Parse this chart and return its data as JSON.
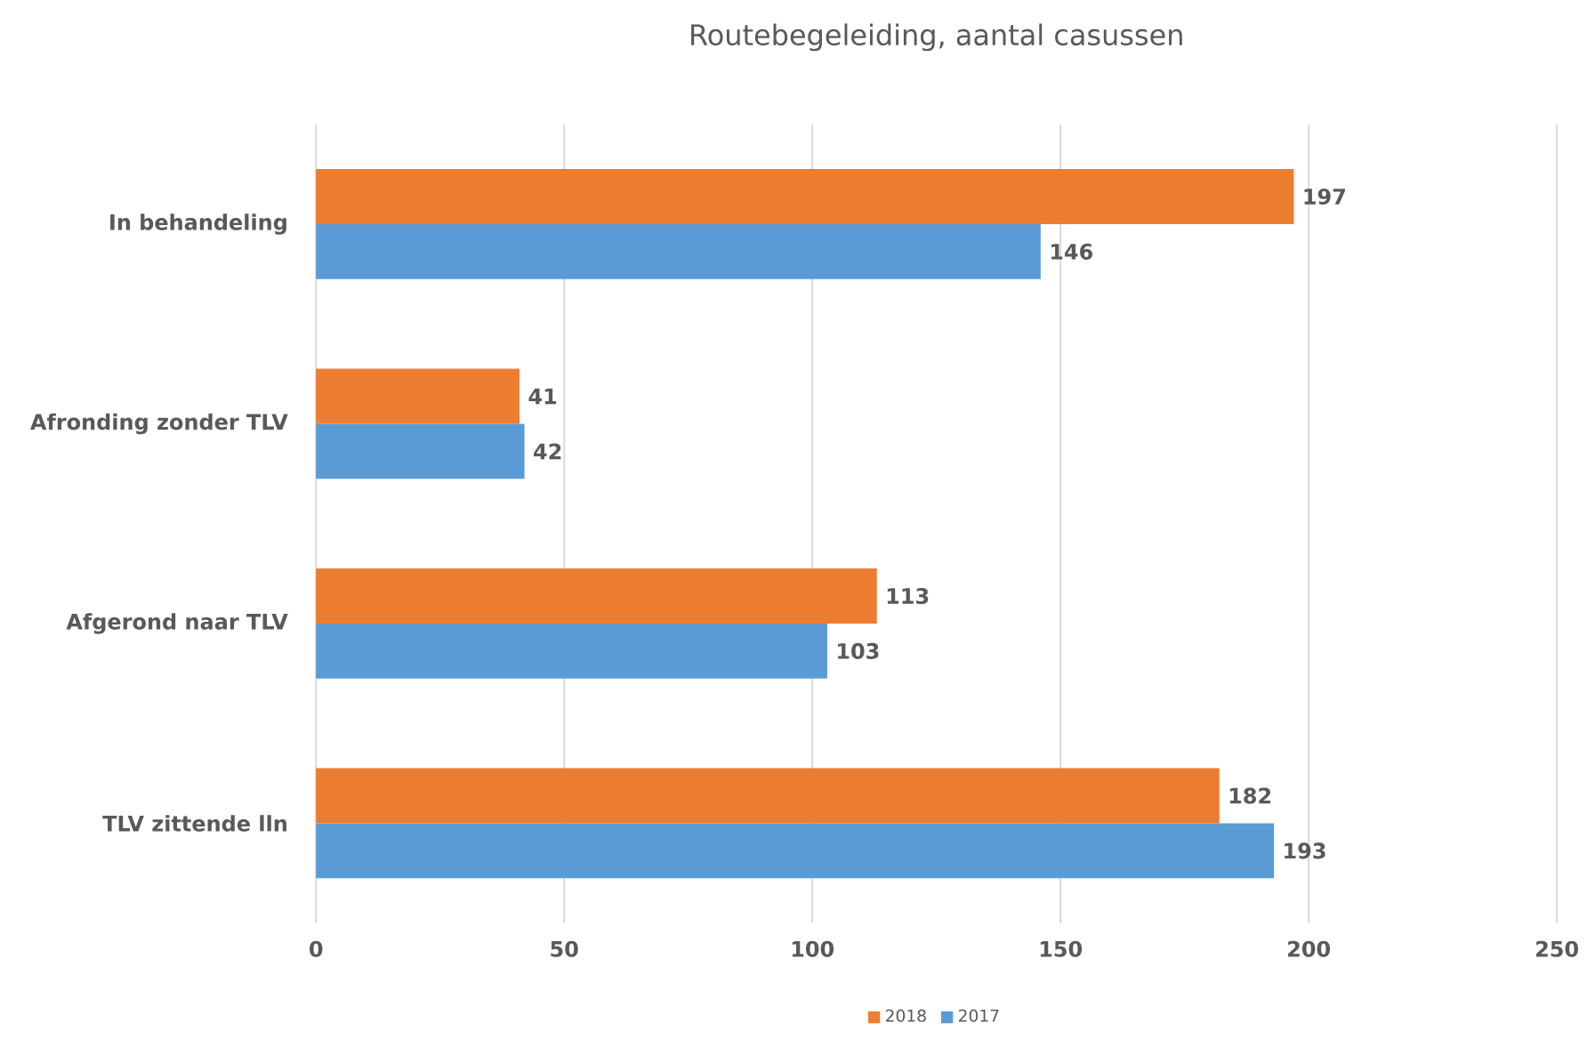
{
  "chart_data": {
    "type": "bar",
    "orientation": "horizontal",
    "title": "Routebegeleiding, aantal casussen",
    "categories": [
      "In behandeling",
      "Afronding zonder TLV",
      "Afgerond naar TLV",
      "TLV zittende lln"
    ],
    "series": [
      {
        "name": "2018",
        "color": "#ed7d31",
        "values": [
          197,
          41,
          113,
          182
        ]
      },
      {
        "name": "2017",
        "color": "#5b9bd5",
        "values": [
          146,
          42,
          103,
          193
        ]
      }
    ],
    "xlim": [
      0,
      250
    ],
    "xticks": [
      0,
      50,
      100,
      150,
      200,
      250
    ],
    "grid": "x",
    "legend": "bottom",
    "data_labels": true
  }
}
